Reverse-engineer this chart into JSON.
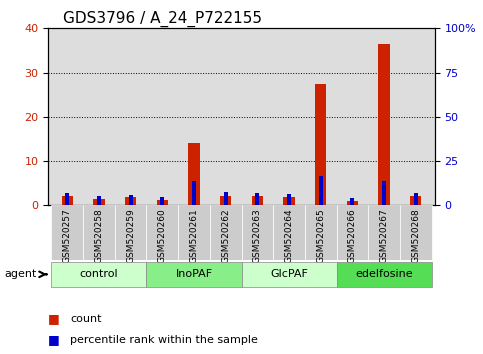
{
  "title": "GDS3796 / A_24_P722155",
  "samples": [
    "GSM520257",
    "GSM520258",
    "GSM520259",
    "GSM520260",
    "GSM520261",
    "GSM520262",
    "GSM520263",
    "GSM520264",
    "GSM520265",
    "GSM520266",
    "GSM520267",
    "GSM520268"
  ],
  "count": [
    2.0,
    1.5,
    1.8,
    1.2,
    14.0,
    2.2,
    2.0,
    1.8,
    27.5,
    1.0,
    36.5,
    2.0
  ],
  "percentile": [
    7.0,
    5.0,
    6.0,
    4.5,
    13.5,
    7.5,
    7.0,
    6.5,
    16.5,
    4.0,
    14.0,
    7.0
  ],
  "groups": [
    {
      "label": "control",
      "start": 0,
      "end": 3,
      "color": "#ccffcc"
    },
    {
      "label": "InoPAF",
      "start": 3,
      "end": 6,
      "color": "#88ee88"
    },
    {
      "label": "GlcPAF",
      "start": 6,
      "end": 9,
      "color": "#ccffcc"
    },
    {
      "label": "edelfosine",
      "start": 9,
      "end": 12,
      "color": "#55dd55"
    }
  ],
  "ylim_left": [
    0,
    40
  ],
  "ylim_right": [
    0,
    100
  ],
  "yticks_left": [
    0,
    10,
    20,
    30,
    40
  ],
  "yticks_right": [
    0,
    25,
    50,
    75,
    100
  ],
  "ytick_labels_right": [
    "0",
    "25",
    "50",
    "75",
    "100%"
  ],
  "bar_width": 0.35,
  "count_color": "#cc2200",
  "percentile_color": "#0000cc",
  "grid_color": "#000000",
  "bg_color": "#dddddd",
  "legend_count_label": "count",
  "legend_pct_label": "percentile rank within the sample",
  "agent_label": "agent",
  "title_fontsize": 11,
  "axis_fontsize": 9,
  "tick_fontsize": 8
}
